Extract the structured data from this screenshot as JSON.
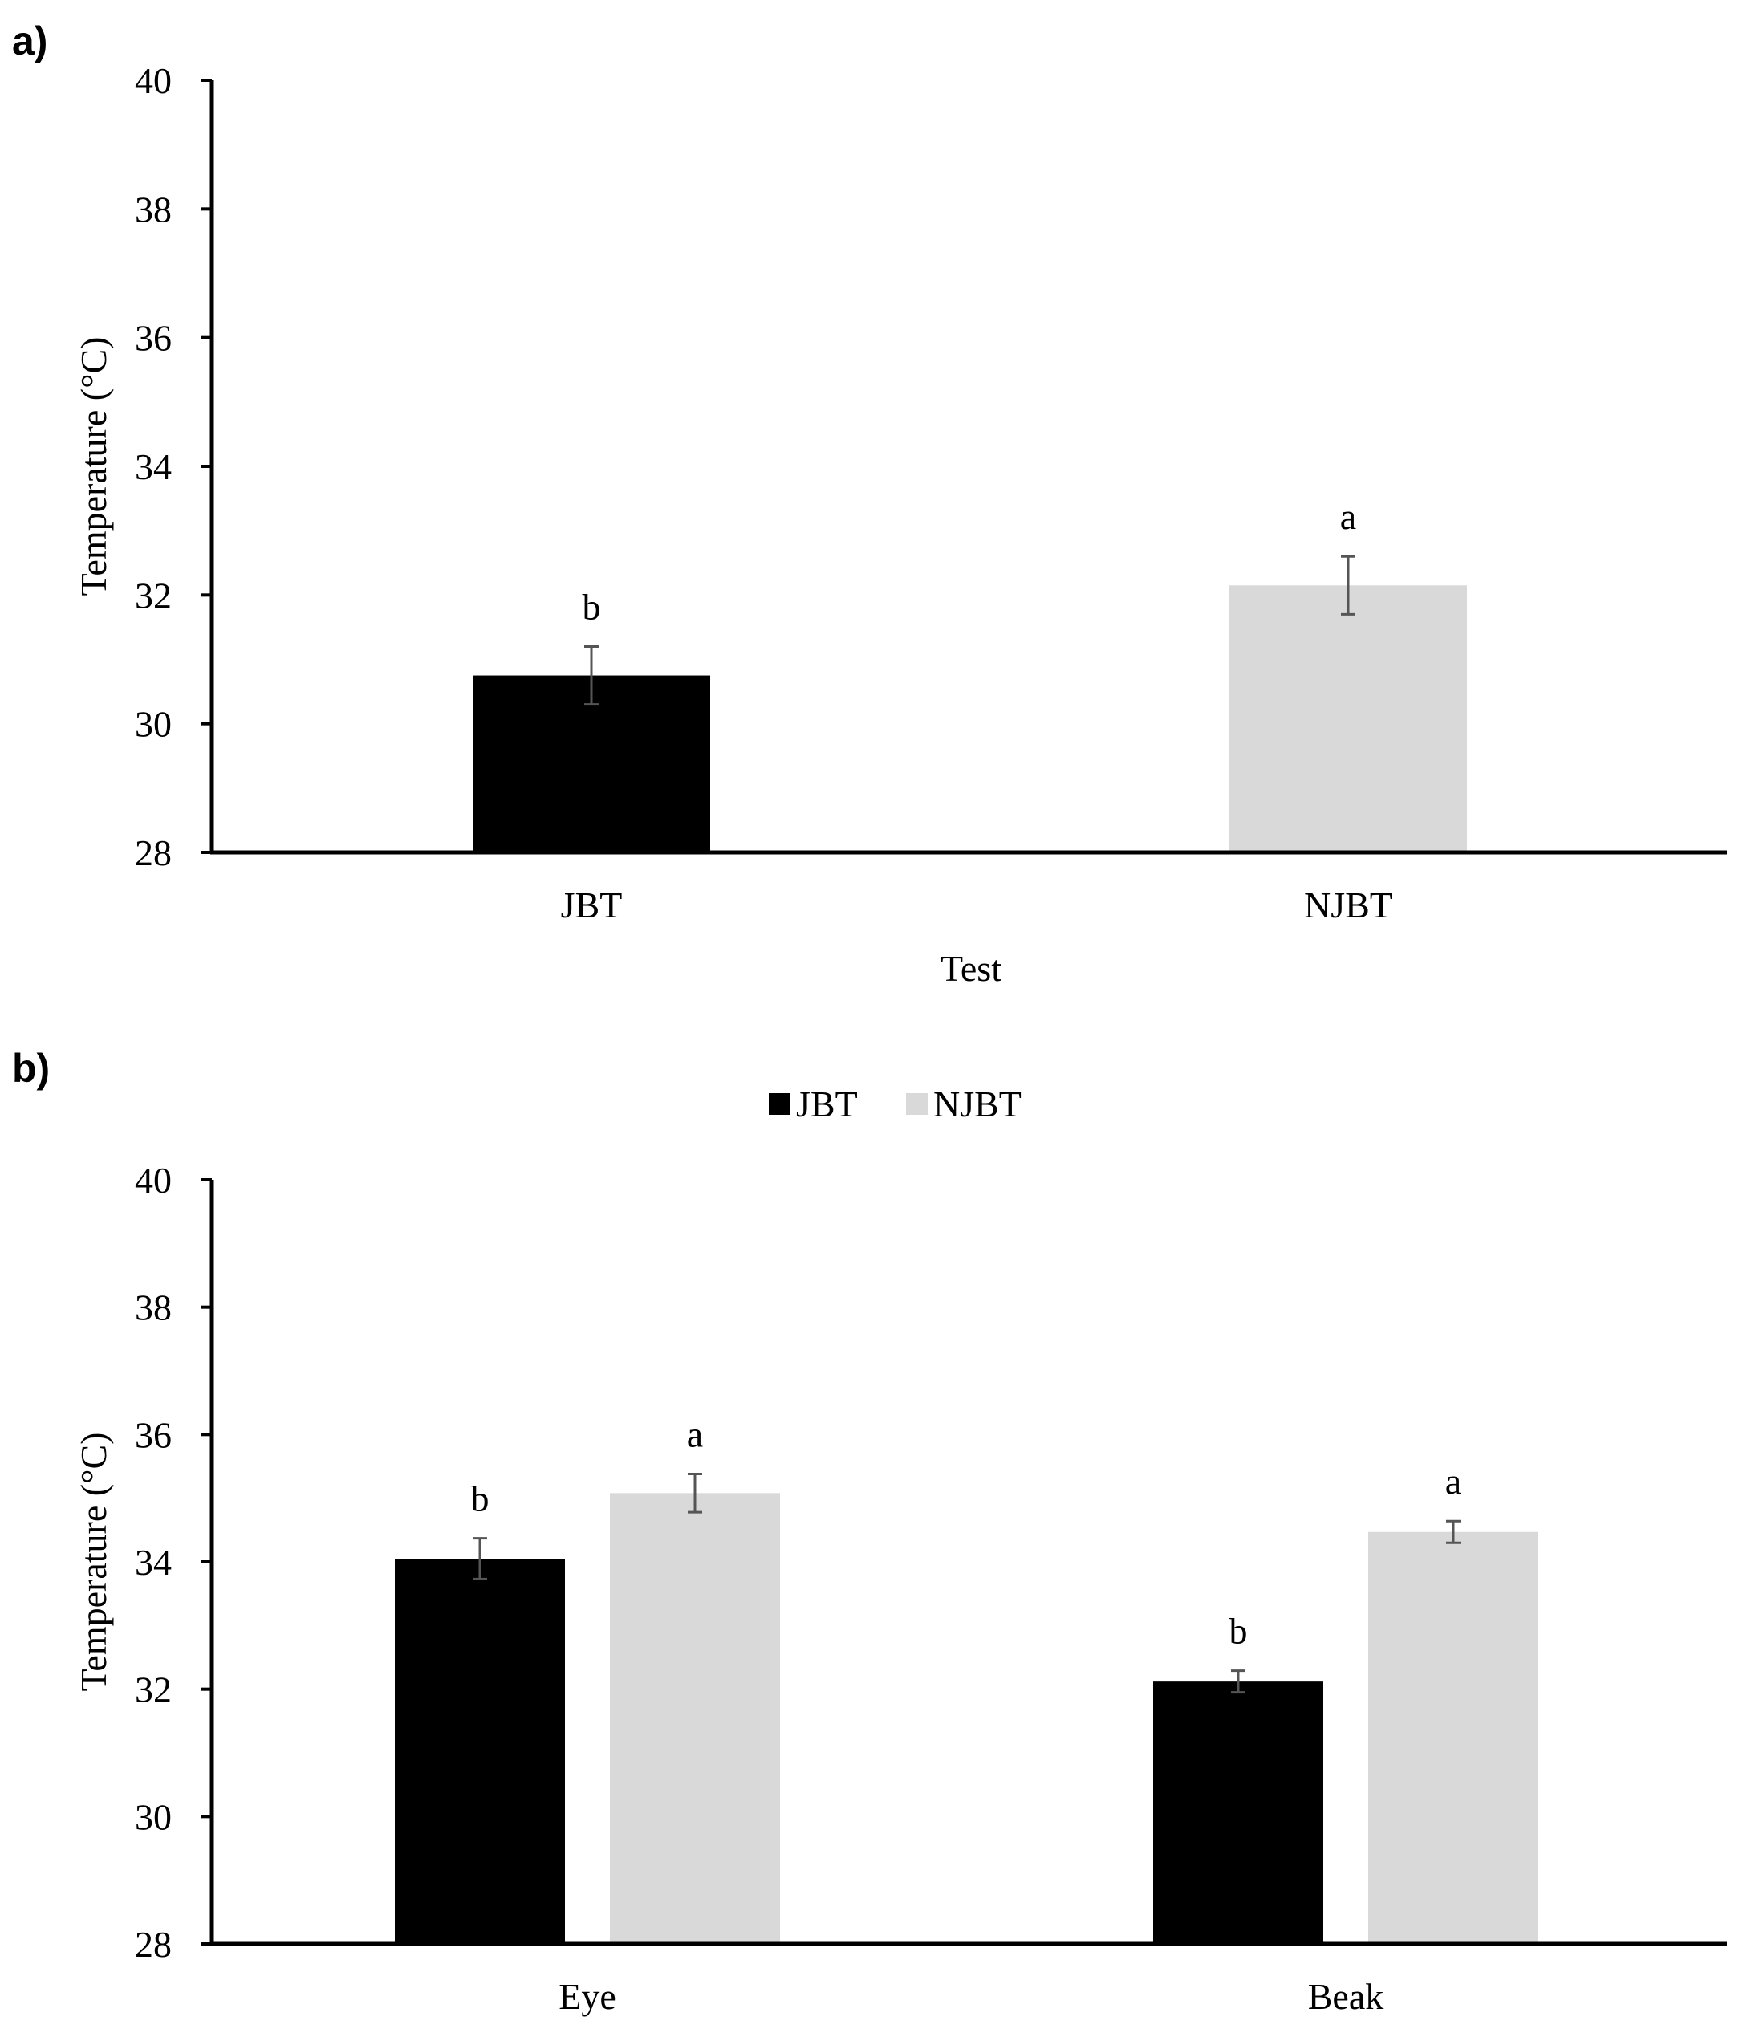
{
  "chart_data": [
    {
      "panel": "a)",
      "type": "bar",
      "title": "",
      "xlabel": "Test",
      "ylabel": "Temperature (°C)",
      "ylim": [
        28,
        40
      ],
      "yticks": [
        28,
        30,
        32,
        34,
        36,
        38,
        40
      ],
      "categories": [
        "JBT",
        "NJBT"
      ],
      "legend": null,
      "series": [
        {
          "name": "Test",
          "values": [
            30.75,
            32.15
          ],
          "errors": [
            0.45,
            0.45
          ],
          "colors": [
            "#000000",
            "#d9d9d9"
          ],
          "letters": [
            "b",
            "a"
          ]
        }
      ]
    },
    {
      "panel": "b)",
      "type": "bar",
      "title": "",
      "xlabel": "",
      "ylabel": "Temperature (°C)",
      "ylim": [
        28,
        40
      ],
      "yticks": [
        28,
        30,
        32,
        34,
        36,
        38,
        40
      ],
      "categories": [
        "Eye",
        "Beak"
      ],
      "legend": "top-center",
      "series": [
        {
          "name": "JBT",
          "color": "#000000",
          "values": [
            34.05,
            32.12
          ],
          "errors": [
            0.32,
            0.17
          ],
          "letters": [
            "b",
            "b"
          ]
        },
        {
          "name": "NJBT",
          "color": "#d9d9d9",
          "values": [
            35.08,
            34.47
          ],
          "errors": [
            0.3,
            0.17
          ],
          "letters": [
            "a",
            "a"
          ]
        }
      ]
    }
  ]
}
